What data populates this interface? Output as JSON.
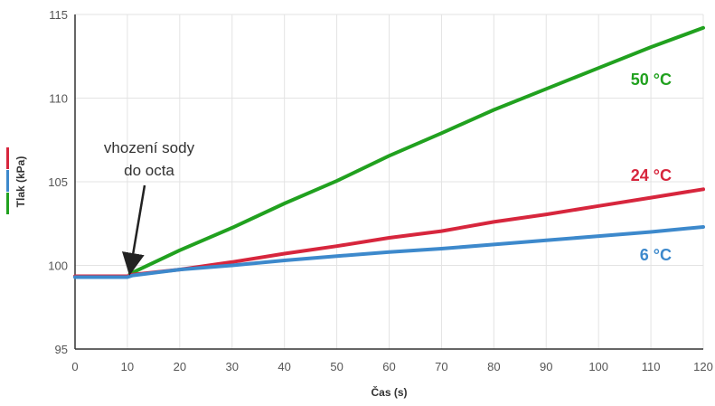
{
  "chart_data": {
    "type": "line",
    "title": "",
    "xlabel": "Čas (s)",
    "ylabel": "Tlak (kPa)",
    "xlim": [
      0,
      120
    ],
    "ylim": [
      95,
      115
    ],
    "x_ticks": [
      0,
      10,
      20,
      30,
      40,
      50,
      60,
      70,
      80,
      90,
      100,
      110,
      120
    ],
    "y_ticks": [
      95,
      100,
      105,
      110,
      115
    ],
    "grid": true,
    "legend": "none (series labeled directly at right end of lines; colored stripes next to y-axis label)",
    "series": [
      {
        "name": "50 °C",
        "color": "#21a11f",
        "points": [
          [
            10.5,
            99.5
          ],
          [
            20,
            100.9
          ],
          [
            30,
            102.25
          ],
          [
            40,
            103.7
          ],
          [
            50,
            105.05
          ],
          [
            60,
            106.55
          ],
          [
            70,
            107.9
          ],
          [
            80,
            109.3
          ],
          [
            90,
            110.55
          ],
          [
            100,
            111.8
          ],
          [
            110,
            113.05
          ],
          [
            120,
            114.2
          ]
        ]
      },
      {
        "name": "24 °C",
        "color": "#d7263d",
        "points": [
          [
            0,
            99.35
          ],
          [
            5,
            99.35
          ],
          [
            10,
            99.35
          ],
          [
            11,
            99.45
          ],
          [
            20,
            99.75
          ],
          [
            30,
            100.2
          ],
          [
            40,
            100.7
          ],
          [
            50,
            101.15
          ],
          [
            60,
            101.65
          ],
          [
            70,
            102.05
          ],
          [
            80,
            102.6
          ],
          [
            90,
            103.05
          ],
          [
            100,
            103.55
          ],
          [
            110,
            104.05
          ],
          [
            120,
            104.55
          ]
        ]
      },
      {
        "name": "6 °C",
        "color": "#3d89cc",
        "points": [
          [
            0,
            99.3
          ],
          [
            10,
            99.3
          ],
          [
            11,
            99.4
          ],
          [
            20,
            99.75
          ],
          [
            30,
            100.0
          ],
          [
            40,
            100.3
          ],
          [
            50,
            100.55
          ],
          [
            60,
            100.8
          ],
          [
            70,
            101.0
          ],
          [
            80,
            101.25
          ],
          [
            90,
            101.5
          ],
          [
            100,
            101.75
          ],
          [
            110,
            102.0
          ],
          [
            120,
            102.3
          ]
        ]
      }
    ],
    "annotations": [
      {
        "text_lines": [
          "vhození sody",
          "do octa"
        ],
        "points_to": [
          10.5,
          99.6
        ]
      }
    ]
  }
}
